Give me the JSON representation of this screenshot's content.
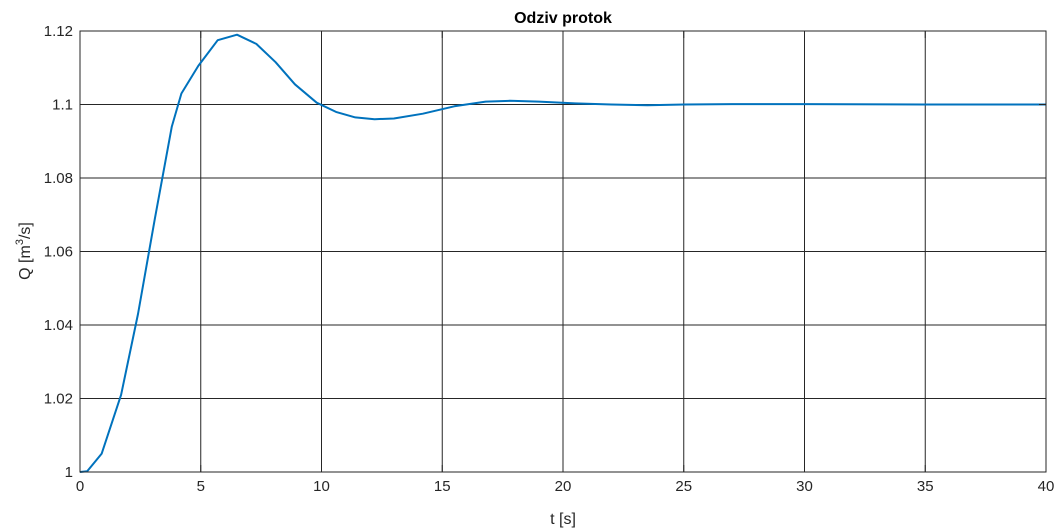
{
  "chart_data": {
    "type": "line",
    "title": "Odziv protok",
    "xlabel": "t [s]",
    "ylabel_prefix": "Q [m",
    "ylabel_sup": "3",
    "ylabel_suffix": "/s]",
    "xlim": [
      0,
      40
    ],
    "ylim": [
      1,
      1.12
    ],
    "xticks": [
      0,
      5,
      10,
      15,
      20,
      25,
      30,
      35,
      40
    ],
    "xtick_labels": [
      "0",
      "5",
      "10",
      "15",
      "20",
      "25",
      "30",
      "35",
      "40"
    ],
    "yticks": [
      1,
      1.02,
      1.04,
      1.06,
      1.08,
      1.1,
      1.12
    ],
    "ytick_labels": [
      "1",
      "1.02",
      "1.04",
      "1.06",
      "1.08",
      "1.1",
      "1.12"
    ],
    "grid": true,
    "series": [
      {
        "color": "#0072BD",
        "x": [
          0,
          0.3,
          0.9,
          1.7,
          2.4,
          3.1,
          3.8,
          4.2,
          4.9,
          5.7,
          6.5,
          7.3,
          8.1,
          8.9,
          9.8,
          10.6,
          11.4,
          12.2,
          13.0,
          14.2,
          15.5,
          16.8,
          17.8,
          19.0,
          20.5,
          22.0,
          23.5,
          25.0,
          27.0,
          30.0,
          35.0,
          40.0
        ],
        "y": [
          1.0,
          1.0002,
          1.005,
          1.021,
          1.043,
          1.069,
          1.094,
          1.103,
          1.1105,
          1.1175,
          1.119,
          1.1165,
          1.1115,
          1.1055,
          1.1005,
          1.098,
          1.0965,
          1.096,
          1.0962,
          1.0975,
          1.0995,
          1.1008,
          1.101,
          1.1008,
          1.1003,
          1.1,
          1.0998,
          1.1,
          1.1001,
          1.1001,
          1.1,
          1.1
        ]
      }
    ]
  }
}
